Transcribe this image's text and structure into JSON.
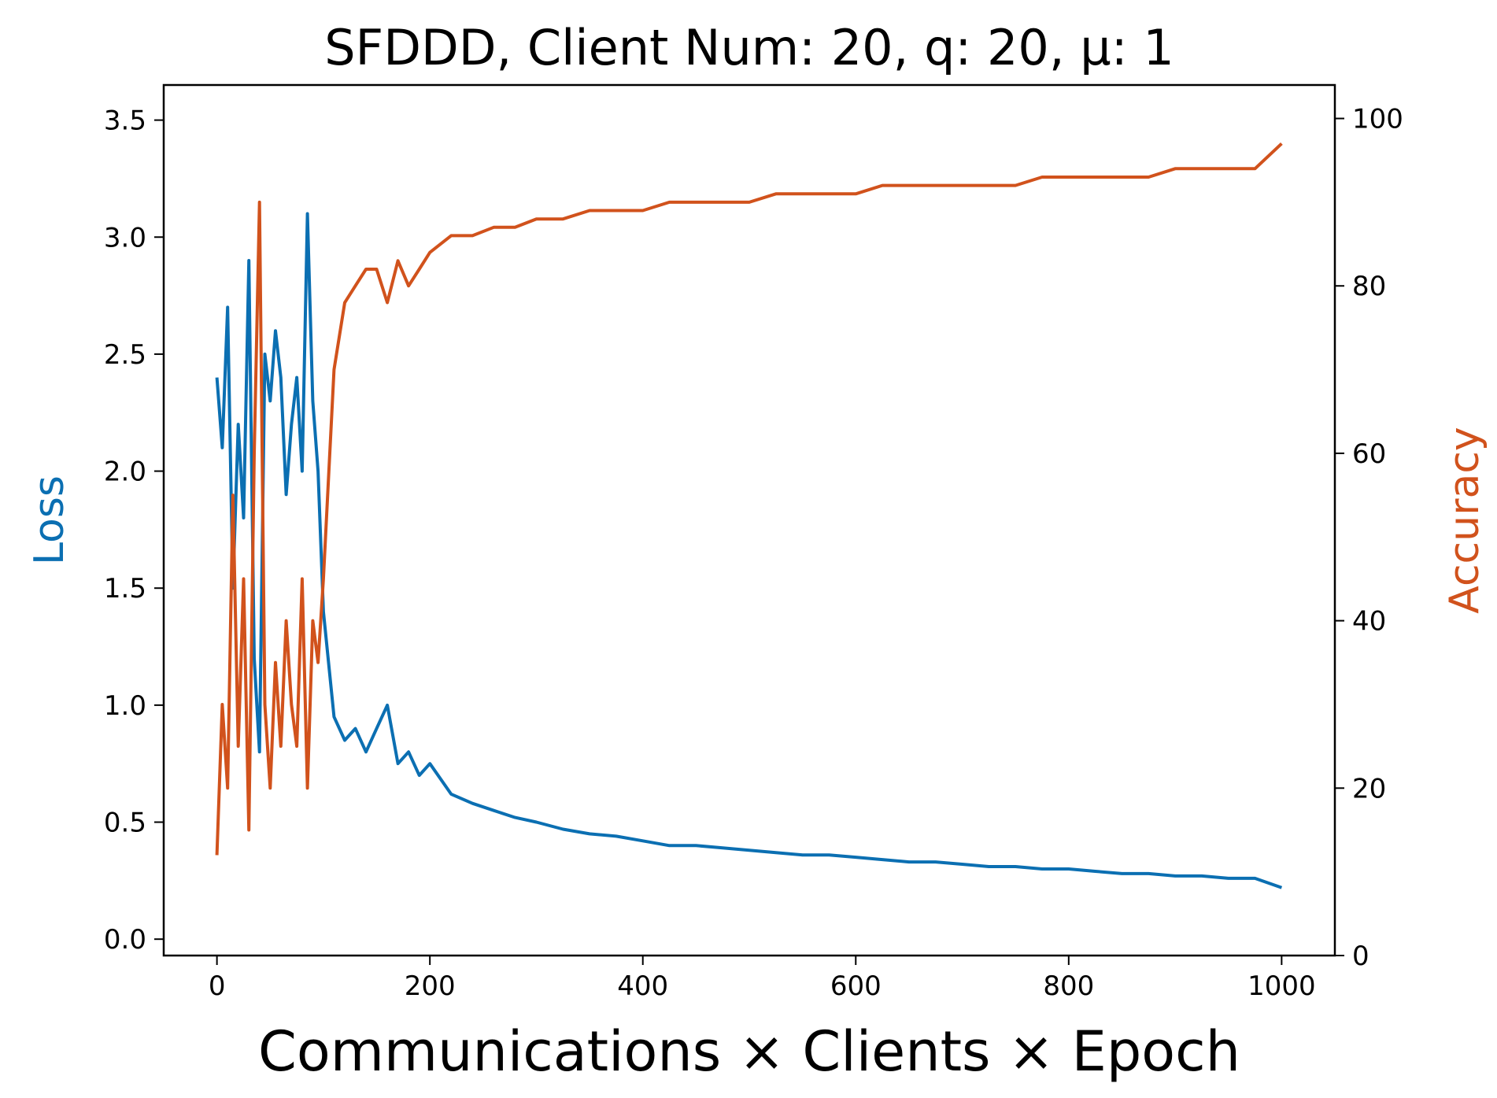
{
  "chart_data": {
    "type": "line",
    "title": "SFDDD, Client Num: 20, q: 20, μ: 1",
    "xlabel": "Communications × Clients × Epoch",
    "ylabel_left": "Loss",
    "ylabel_right": "Accuracy",
    "xlim": [
      -50,
      1050
    ],
    "ylim_left": [
      -0.07,
      3.65
    ],
    "ylim_right": [
      0,
      104
    ],
    "xticks": [
      0,
      200,
      400,
      600,
      800,
      1000
    ],
    "yticks_left": [
      0.0,
      0.5,
      1.0,
      1.5,
      2.0,
      2.5,
      3.0,
      3.5
    ],
    "yticks_right": [
      0,
      20,
      40,
      60,
      80,
      100
    ],
    "grid": false,
    "colors": {
      "loss": "#0b6fb2",
      "accuracy": "#d1521c"
    },
    "series": [
      {
        "name": "Loss",
        "axis": "left",
        "color": "#0b6fb2",
        "x": [
          0,
          5,
          10,
          15,
          20,
          25,
          30,
          35,
          40,
          45,
          50,
          55,
          60,
          65,
          70,
          75,
          80,
          85,
          90,
          95,
          100,
          110,
          120,
          130,
          140,
          150,
          160,
          170,
          180,
          190,
          200,
          220,
          240,
          260,
          280,
          300,
          325,
          350,
          375,
          400,
          425,
          450,
          475,
          500,
          525,
          550,
          575,
          600,
          625,
          650,
          675,
          700,
          725,
          750,
          775,
          800,
          825,
          850,
          875,
          900,
          925,
          950,
          975,
          1000
        ],
        "y": [
          2.4,
          2.1,
          2.7,
          1.5,
          2.2,
          1.8,
          2.9,
          1.2,
          0.8,
          2.5,
          2.3,
          2.6,
          2.4,
          1.9,
          2.2,
          2.4,
          2.0,
          3.1,
          2.3,
          2.0,
          1.4,
          0.95,
          0.85,
          0.9,
          0.8,
          0.9,
          1.0,
          0.75,
          0.8,
          0.7,
          0.75,
          0.62,
          0.58,
          0.55,
          0.52,
          0.5,
          0.47,
          0.45,
          0.44,
          0.42,
          0.4,
          0.4,
          0.39,
          0.38,
          0.37,
          0.36,
          0.36,
          0.35,
          0.34,
          0.33,
          0.33,
          0.32,
          0.31,
          0.31,
          0.3,
          0.3,
          0.29,
          0.28,
          0.28,
          0.27,
          0.27,
          0.26,
          0.26,
          0.22
        ]
      },
      {
        "name": "Accuracy",
        "axis": "right",
        "color": "#d1521c",
        "x": [
          0,
          5,
          10,
          15,
          20,
          25,
          30,
          35,
          40,
          45,
          50,
          55,
          60,
          65,
          70,
          75,
          80,
          85,
          90,
          95,
          100,
          110,
          120,
          130,
          140,
          150,
          160,
          170,
          180,
          190,
          200,
          220,
          240,
          260,
          280,
          300,
          325,
          350,
          375,
          400,
          425,
          450,
          475,
          500,
          525,
          550,
          575,
          600,
          625,
          650,
          675,
          700,
          725,
          750,
          775,
          800,
          825,
          850,
          875,
          900,
          925,
          950,
          975,
          1000
        ],
        "y": [
          12,
          30,
          20,
          55,
          25,
          45,
          15,
          60,
          90,
          30,
          20,
          35,
          25,
          40,
          30,
          25,
          45,
          20,
          40,
          35,
          45,
          70,
          78,
          80,
          82,
          82,
          78,
          83,
          80,
          82,
          84,
          86,
          86,
          87,
          87,
          88,
          88,
          89,
          89,
          89,
          90,
          90,
          90,
          90,
          91,
          91,
          91,
          91,
          92,
          92,
          92,
          92,
          92,
          92,
          93,
          93,
          93,
          93,
          93,
          94,
          94,
          94,
          94,
          97
        ]
      }
    ]
  }
}
